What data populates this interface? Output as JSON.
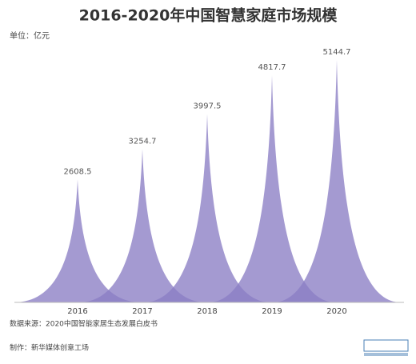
{
  "chart_data": {
    "type": "peak_bar",
    "title": "2016-2020年中国智慧家庭市场规模",
    "unit_label": "单位：亿元",
    "categories": [
      "2016",
      "2017",
      "2018",
      "2019",
      "2020"
    ],
    "values": [
      2608.5,
      3254.7,
      3997.5,
      4817.7,
      5144.7
    ],
    "color": "#8a7dc4",
    "ylim": [
      0,
      5500
    ],
    "source": "数据来源：2020中国智能家居生态发展白皮书",
    "credit": "制作：新华媒体创意工场"
  }
}
